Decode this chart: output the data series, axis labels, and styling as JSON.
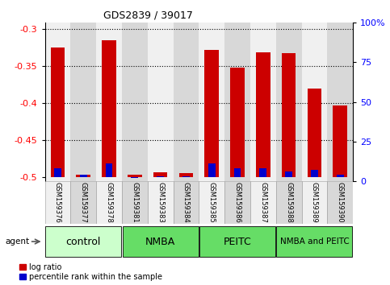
{
  "title": "GDS2839 / 39017",
  "samples": [
    "GSM159376",
    "GSM159377",
    "GSM159378",
    "GSM159381",
    "GSM159383",
    "GSM159384",
    "GSM159385",
    "GSM159386",
    "GSM159387",
    "GSM159388",
    "GSM159389",
    "GSM159390"
  ],
  "log_ratio": [
    -0.325,
    -0.497,
    -0.316,
    -0.497,
    -0.493,
    -0.494,
    -0.328,
    -0.352,
    -0.332,
    -0.333,
    -0.381,
    -0.403
  ],
  "percentile_rank": [
    8,
    4,
    11,
    2,
    3,
    3,
    11,
    8,
    8,
    6,
    7,
    4
  ],
  "bar_bottom": -0.5,
  "ylim_left": [
    -0.505,
    -0.292
  ],
  "ylim_right": [
    0,
    100
  ],
  "yticks_left": [
    -0.5,
    -0.45,
    -0.4,
    -0.35,
    -0.3
  ],
  "yticks_right": [
    0,
    25,
    50,
    75,
    100
  ],
  "ytick_labels_right": [
    "0",
    "25",
    "50",
    "75",
    "100%"
  ],
  "group_colors": [
    "#ccffcc",
    "#66dd66",
    "#66dd66",
    "#66dd66"
  ],
  "group_labels": [
    "control",
    "NMBA",
    "PEITC",
    "NMBA and PEITC"
  ],
  "group_ranges": [
    [
      0,
      3
    ],
    [
      3,
      6
    ],
    [
      6,
      9
    ],
    [
      9,
      12
    ]
  ],
  "group_font_sizes": [
    9,
    9,
    9,
    7.5
  ],
  "bar_color_red": "#cc0000",
  "bar_color_blue": "#0000cc",
  "col_bg_even": "#f0f0f0",
  "col_bg_odd": "#d8d8d8",
  "agent_label": "agent",
  "legend_log_ratio": "log ratio",
  "legend_percentile": "percentile rank within the sample"
}
